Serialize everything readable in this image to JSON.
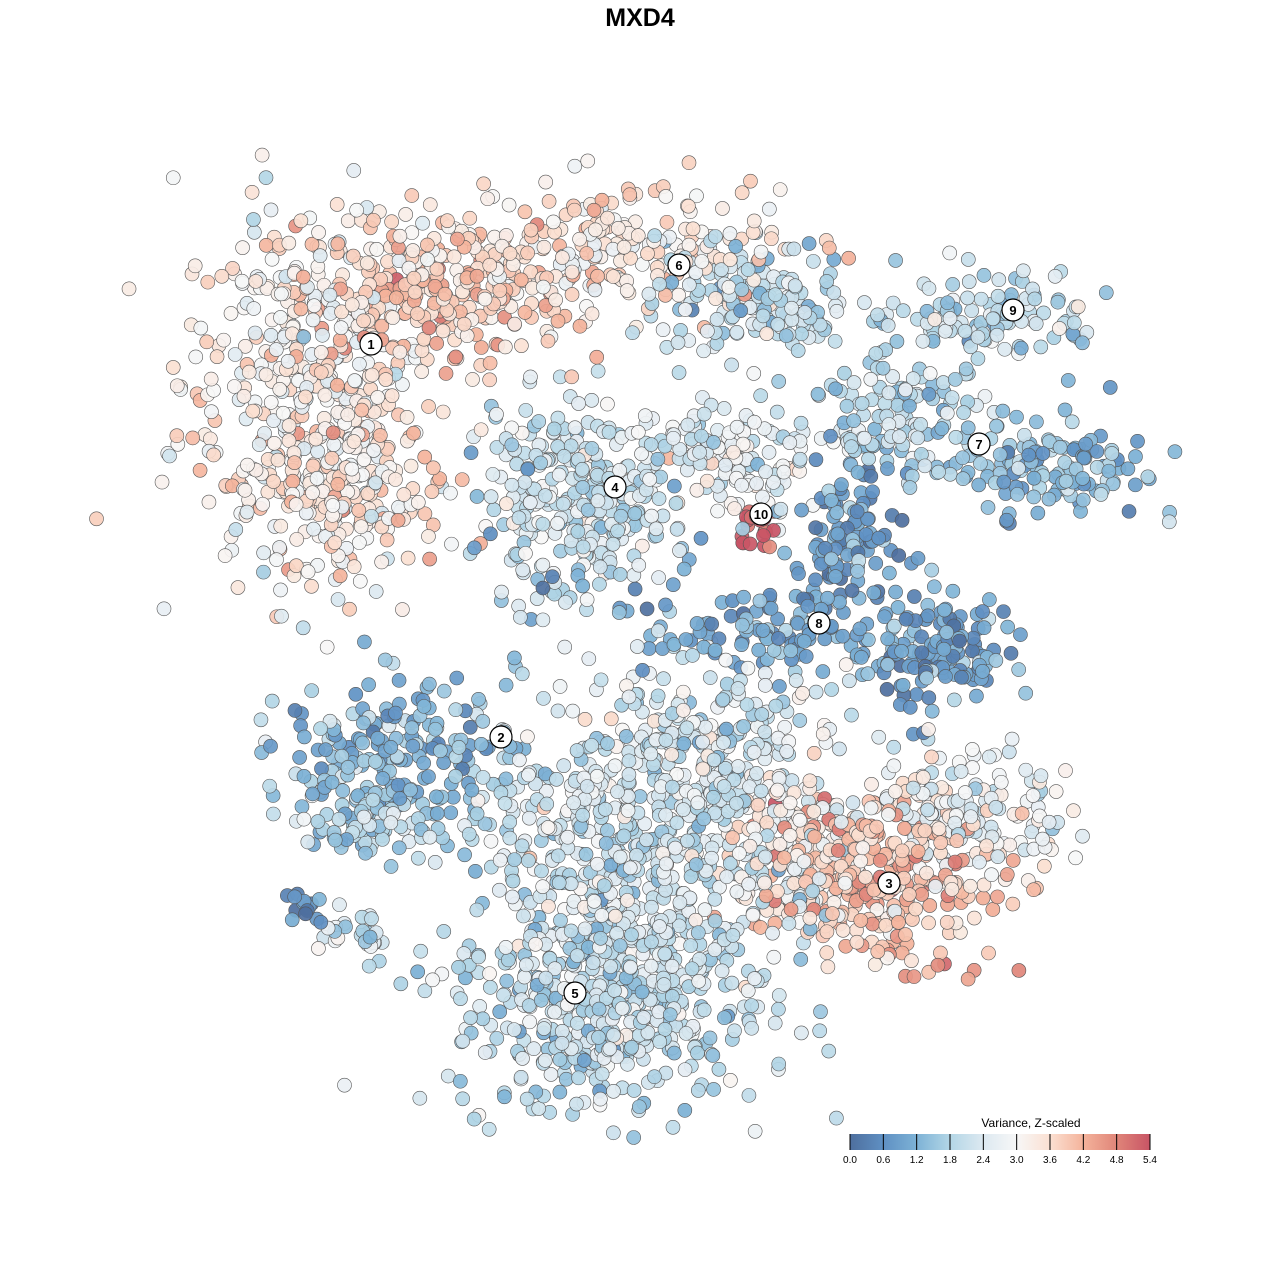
{
  "chart_data": {
    "type": "scatter",
    "title": "MXD4",
    "xlabel": "",
    "ylabel": "",
    "xlim": [
      -50,
      50
    ],
    "ylim": [
      -50,
      50
    ],
    "grid": false,
    "note": "Points generated from cluster distributions (tSNE units): center, spread, count, mean value",
    "clusters": [
      {
        "id": "1",
        "x": -34,
        "y": 26,
        "sx": 6,
        "sy": 9,
        "n": 350,
        "value": 3.1
      },
      {
        "id": "1",
        "x": -21,
        "y": 35,
        "sx": 7,
        "sy": 4,
        "n": 300,
        "value": 3.7
      },
      {
        "id": "1",
        "x": -29,
        "y": 15,
        "sx": 5,
        "sy": 5,
        "n": 200,
        "value": 3.4
      },
      {
        "id": "6",
        "x": -2,
        "y": 39,
        "sx": 8,
        "sy": 3,
        "n": 200,
        "value": 3.3
      },
      {
        "id": "6",
        "x": 12,
        "y": 34,
        "sx": 5,
        "sy": 3,
        "n": 150,
        "value": 2.0
      },
      {
        "id": "9",
        "x": 34,
        "y": 32.5,
        "sx": 6,
        "sy": 2.5,
        "n": 120,
        "value": 2.0
      },
      {
        "id": "7",
        "x": 26,
        "y": 22,
        "sx": 5,
        "sy": 2.5,
        "n": 120,
        "value": 1.9
      },
      {
        "id": "7",
        "x": 41,
        "y": 17,
        "sx": 5,
        "sy": 2.5,
        "n": 130,
        "value": 1.2
      },
      {
        "id": "4",
        "x": -6,
        "y": 14,
        "sx": 4.5,
        "sy": 5,
        "n": 280,
        "value": 2.2
      },
      {
        "id": "4",
        "x": 8,
        "y": 19,
        "sx": 5,
        "sy": 2,
        "n": 100,
        "value": 2.5
      },
      {
        "id": "10",
        "x": 12,
        "y": 11.5,
        "sx": 1.2,
        "sy": 1.2,
        "n": 20,
        "value": 5.2
      },
      {
        "id": "10",
        "x": 12,
        "y": 16,
        "sx": 3,
        "sy": 2,
        "n": 40,
        "value": 2.8
      },
      {
        "id": "8",
        "x": 21,
        "y": 10,
        "sx": 3,
        "sy": 4,
        "n": 120,
        "value": 0.8
      },
      {
        "id": "8",
        "x": 29,
        "y": -1,
        "sx": 4,
        "sy": 3,
        "n": 150,
        "value": 0.9
      },
      {
        "id": "8",
        "x": 10,
        "y": 0.5,
        "sx": 5,
        "sy": 2,
        "n": 80,
        "value": 0.9
      },
      {
        "id": "2",
        "x": -24,
        "y": -11,
        "sx": 6,
        "sy": 3.5,
        "n": 200,
        "value": 1.3
      },
      {
        "id": "2",
        "x": -27,
        "y": -18,
        "sx": 4,
        "sy": 2,
        "n": 80,
        "value": 1.9
      },
      {
        "id": "2",
        "x": -33.5,
        "y": -26.5,
        "sx": 1,
        "sy": 0.8,
        "n": 15,
        "value": 0.3
      },
      {
        "id": "2",
        "x": -28,
        "y": -29.5,
        "sx": 2,
        "sy": 1.2,
        "n": 25,
        "value": 2.2
      },
      {
        "id": "5",
        "x": -3,
        "y": -37,
        "sx": 8,
        "sy": 5,
        "n": 450,
        "value": 2.0
      },
      {
        "id": "5",
        "x": -2,
        "y": -24,
        "sx": 8,
        "sy": 6,
        "n": 450,
        "value": 2.2
      },
      {
        "id": "5",
        "x": 5,
        "y": -12,
        "sx": 8,
        "sy": 5,
        "n": 350,
        "value": 2.3
      },
      {
        "id": "3",
        "x": 24,
        "y": -24,
        "sx": 6,
        "sy": 4,
        "n": 300,
        "value": 4.0
      },
      {
        "id": "3",
        "x": 33,
        "y": -17,
        "sx": 5,
        "sy": 3,
        "n": 150,
        "value": 2.8
      },
      {
        "id": "3",
        "x": 15,
        "y": -21,
        "sx": 4,
        "sy": 4,
        "n": 120,
        "value": 3.1
      },
      {
        "id": "",
        "x": -5,
        "y": 3,
        "sx": 12,
        "sy": 6,
        "n": 30,
        "value": 1.0
      }
    ],
    "cluster_labels": [
      {
        "label": "1",
        "x": -26.9,
        "y": 29.6
      },
      {
        "label": "2",
        "x": -13.9,
        "y": -9.7
      },
      {
        "label": "3",
        "x": 24.9,
        "y": -24.3
      },
      {
        "label": "4",
        "x": -2.5,
        "y": 15.3
      },
      {
        "label": "5",
        "x": -6.5,
        "y": -35.3
      },
      {
        "label": "6",
        "x": 3.9,
        "y": 37.5
      },
      {
        "label": "7",
        "x": 33.9,
        "y": 19.6
      },
      {
        "label": "8",
        "x": 17.9,
        "y": 1.7
      },
      {
        "label": "9",
        "x": 37.3,
        "y": 33
      },
      {
        "label": "10",
        "x": 12.1,
        "y": 12.6
      }
    ],
    "legend": {
      "title": "Variance, Z-scaled",
      "position": "bottom-right",
      "range": [
        0,
        5.4
      ],
      "ticks": [
        "0.0",
        "0.6",
        "1.2",
        "1.8",
        "2.4",
        "3.0",
        "3.6",
        "4.2",
        "4.8",
        "5.4"
      ],
      "colors": [
        "#4e6f9e",
        "#5f90c3",
        "#7db2d6",
        "#b3d6e6",
        "#dde9f1",
        "#f7f7f7",
        "#fbe0d2",
        "#f4b39b",
        "#e08579",
        "#c85465"
      ]
    }
  }
}
